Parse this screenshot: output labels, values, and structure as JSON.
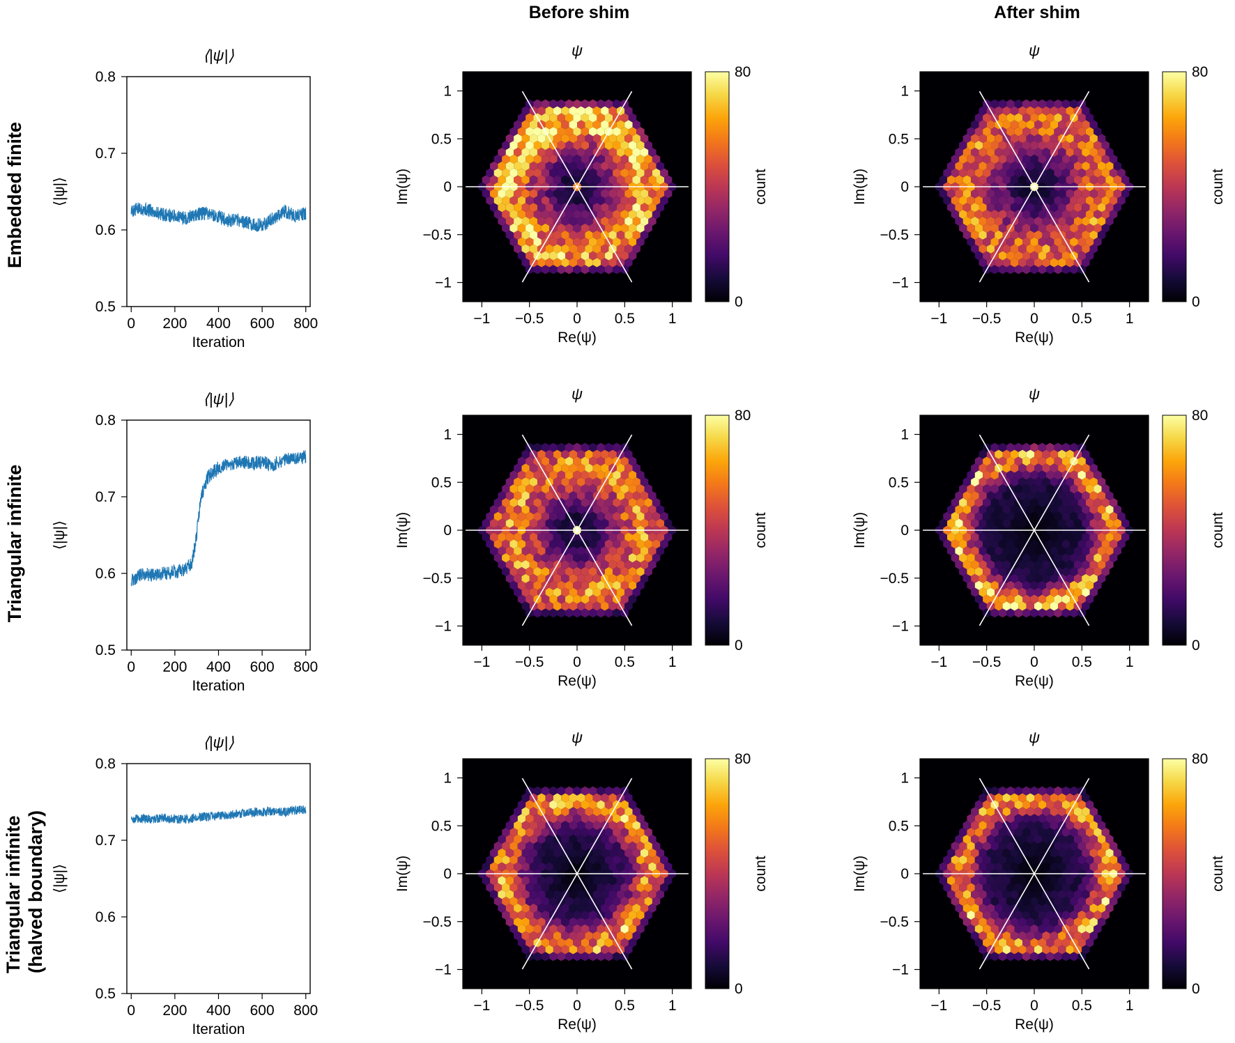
{
  "column_headers": [
    "Before shim",
    "After shim"
  ],
  "row_labels": [
    {
      "lines": [
        "Embedded finite"
      ]
    },
    {
      "lines": [
        "Triangular infinite"
      ]
    },
    {
      "lines": [
        "Triangular infinite",
        "(halved boundary)"
      ]
    }
  ],
  "chart_data": [
    {
      "id": "ts-embedded-finite",
      "type": "line",
      "title": "⟨|ψ|⟩",
      "xlabel": "Iteration",
      "ylabel": "⟨|ψ|⟩",
      "xlim": [
        -20,
        820
      ],
      "ylim": [
        0.5,
        0.8
      ],
      "xticks": [
        0,
        200,
        400,
        600,
        800
      ],
      "xticklabels": [
        "0",
        "200",
        "400",
        "600",
        "800"
      ],
      "yticks": [
        0.5,
        0.6,
        0.7,
        0.8
      ],
      "yticklabels": [
        "0.5",
        "0.6",
        "0.7",
        "0.8"
      ],
      "series": [
        {
          "name": "⟨|ψ|⟩",
          "color": "#1f77b4",
          "x": [
            0,
            50,
            100,
            150,
            200,
            250,
            300,
            350,
            400,
            450,
            500,
            550,
            600,
            650,
            700,
            750,
            800
          ],
          "y": [
            0.625,
            0.628,
            0.624,
            0.62,
            0.618,
            0.615,
            0.62,
            0.622,
            0.617,
            0.612,
            0.612,
            0.608,
            0.605,
            0.615,
            0.625,
            0.618,
            0.622
          ],
          "noise": 0.009
        }
      ]
    },
    {
      "id": "hex-embedded-finite-before",
      "type": "heatmap",
      "title": "ψ",
      "xlabel": "Re(ψ)",
      "ylabel": "Im(ψ)",
      "xlim": [
        -1.2,
        1.2
      ],
      "ylim": [
        -1.2,
        1.2
      ],
      "xticks": [
        -1,
        -0.5,
        0,
        0.5,
        1
      ],
      "xticklabels": [
        "−1",
        "−0.5",
        "0",
        "0.5",
        "1"
      ],
      "yticks": [
        -1,
        -0.5,
        0,
        0.5,
        1
      ],
      "yticklabels": [
        "−1",
        "−0.5",
        "0",
        "0.5",
        "1"
      ],
      "colorbar": {
        "label": "count",
        "min": 0,
        "max": 80,
        "ticklabels": [
          "0",
          "80"
        ],
        "colormap": "inferno"
      },
      "guide_lines_deg": [
        0,
        60,
        120
      ],
      "density": {
        "ring_radius": 0.72,
        "ring_width": 0.28,
        "ring_peak": 42,
        "inner_level": 22,
        "center_peak": 70,
        "top_boost": 14,
        "edge_radius": 0.98,
        "seed": 11
      }
    },
    {
      "id": "hex-embedded-finite-after",
      "type": "heatmap",
      "title": "ψ",
      "xlabel": "Re(ψ)",
      "ylabel": "Im(ψ)",
      "xlim": [
        -1.2,
        1.2
      ],
      "ylim": [
        -1.2,
        1.2
      ],
      "xticks": [
        -1,
        -0.5,
        0,
        0.5,
        1
      ],
      "xticklabels": [
        "−1",
        "−0.5",
        "0",
        "0.5",
        "1"
      ],
      "yticks": [
        -1,
        -0.5,
        0,
        0.5,
        1
      ],
      "yticklabels": [
        "−1",
        "−0.5",
        "0",
        "0.5",
        "1"
      ],
      "colorbar": {
        "label": "count",
        "min": 0,
        "max": 80,
        "ticklabels": [
          "0",
          "80"
        ],
        "colormap": "inferno"
      },
      "guide_lines_deg": [
        0,
        60,
        120
      ],
      "density": {
        "ring_radius": 0.72,
        "ring_width": 0.3,
        "ring_peak": 36,
        "inner_level": 18,
        "center_peak": 65,
        "top_boost": 0,
        "edge_radius": 0.98,
        "seed": 23
      }
    },
    {
      "id": "ts-triangular-infinite",
      "type": "line",
      "title": "⟨|ψ|⟩",
      "xlabel": "Iteration",
      "ylabel": "⟨|ψ|⟩",
      "xlim": [
        -20,
        820
      ],
      "ylim": [
        0.5,
        0.8
      ],
      "xticks": [
        0,
        200,
        400,
        600,
        800
      ],
      "xticklabels": [
        "0",
        "200",
        "400",
        "600",
        "800"
      ],
      "yticks": [
        0.5,
        0.6,
        0.7,
        0.8
      ],
      "yticklabels": [
        "0.5",
        "0.6",
        "0.7",
        "0.8"
      ],
      "series": [
        {
          "name": "⟨|ψ|⟩",
          "color": "#1f77b4",
          "x": [
            0,
            50,
            100,
            150,
            200,
            250,
            280,
            300,
            320,
            350,
            400,
            450,
            500,
            550,
            600,
            650,
            700,
            750,
            800
          ],
          "y": [
            0.59,
            0.6,
            0.598,
            0.6,
            0.602,
            0.605,
            0.615,
            0.65,
            0.7,
            0.725,
            0.738,
            0.742,
            0.745,
            0.744,
            0.745,
            0.742,
            0.748,
            0.75,
            0.752
          ],
          "noise": 0.009
        }
      ]
    },
    {
      "id": "hex-triangular-infinite-before",
      "type": "heatmap",
      "title": "ψ",
      "xlabel": "Re(ψ)",
      "ylabel": "Im(ψ)",
      "xlim": [
        -1.2,
        1.2
      ],
      "ylim": [
        -1.2,
        1.2
      ],
      "xticks": [
        -1,
        -0.5,
        0,
        0.5,
        1
      ],
      "xticklabels": [
        "−1",
        "−0.5",
        "0",
        "0.5",
        "1"
      ],
      "yticks": [
        -1,
        -0.5,
        0,
        0.5,
        1
      ],
      "yticklabels": [
        "−1",
        "−0.5",
        "0",
        "0.5",
        "1"
      ],
      "colorbar": {
        "label": "count",
        "min": 0,
        "max": 80,
        "ticklabels": [
          "0",
          "80"
        ],
        "colormap": "inferno"
      },
      "guide_lines_deg": [
        0,
        60,
        120
      ],
      "density": {
        "ring_radius": 0.68,
        "ring_width": 0.3,
        "ring_peak": 40,
        "inner_level": 16,
        "center_peak": 72,
        "top_boost": 0,
        "edge_radius": 0.98,
        "seed": 37
      }
    },
    {
      "id": "hex-triangular-infinite-after",
      "type": "heatmap",
      "title": "ψ",
      "xlabel": "Re(ψ)",
      "ylabel": "Im(ψ)",
      "xlim": [
        -1.2,
        1.2
      ],
      "ylim": [
        -1.2,
        1.2
      ],
      "xticks": [
        -1,
        -0.5,
        0,
        0.5,
        1
      ],
      "xticklabels": [
        "−1",
        "−0.5",
        "0",
        "0.5",
        "1"
      ],
      "yticks": [
        -1,
        -0.5,
        0,
        0.5,
        1
      ],
      "yticklabels": [
        "−1",
        "−0.5",
        "0",
        "0.5",
        "1"
      ],
      "colorbar": {
        "label": "count",
        "min": 0,
        "max": 80,
        "ticklabels": [
          "0",
          "80"
        ],
        "colormap": "inferno"
      },
      "guide_lines_deg": [
        0,
        60,
        120
      ],
      "density": {
        "ring_radius": 0.8,
        "ring_width": 0.17,
        "ring_peak": 56,
        "inner_level": 8,
        "center_peak": 0,
        "top_boost": 0,
        "edge_radius": 0.98,
        "seed": 41
      }
    },
    {
      "id": "ts-triangular-infinite-halved",
      "type": "line",
      "title": "⟨|ψ|⟩",
      "xlabel": "Iteration",
      "ylabel": "⟨|ψ|⟩",
      "xlim": [
        -20,
        820
      ],
      "ylim": [
        0.5,
        0.8
      ],
      "xticks": [
        0,
        200,
        400,
        600,
        800
      ],
      "xticklabels": [
        "0",
        "200",
        "400",
        "600",
        "800"
      ],
      "yticks": [
        0.5,
        0.6,
        0.7,
        0.8
      ],
      "yticklabels": [
        "0.5",
        "0.6",
        "0.7",
        "0.8"
      ],
      "series": [
        {
          "name": "⟨|ψ|⟩",
          "color": "#1f77b4",
          "x": [
            0,
            50,
            100,
            150,
            200,
            250,
            300,
            350,
            400,
            450,
            500,
            550,
            600,
            650,
            700,
            750,
            800
          ],
          "y": [
            0.728,
            0.728,
            0.728,
            0.729,
            0.728,
            0.727,
            0.73,
            0.731,
            0.732,
            0.733,
            0.735,
            0.736,
            0.737,
            0.738,
            0.737,
            0.739,
            0.74
          ],
          "noise": 0.006
        }
      ]
    },
    {
      "id": "hex-triangular-infinite-halved-before",
      "type": "heatmap",
      "title": "ψ",
      "xlabel": "Re(ψ)",
      "ylabel": "Im(ψ)",
      "xlim": [
        -1.2,
        1.2
      ],
      "ylim": [
        -1.2,
        1.2
      ],
      "xticks": [
        -1,
        -0.5,
        0,
        0.5,
        1
      ],
      "xticklabels": [
        "−1",
        "−0.5",
        "0",
        "0.5",
        "1"
      ],
      "yticks": [
        -1,
        -0.5,
        0,
        0.5,
        1
      ],
      "yticklabels": [
        "−1",
        "−0.5",
        "0",
        "0.5",
        "1"
      ],
      "colorbar": {
        "label": "count",
        "min": 0,
        "max": 80,
        "ticklabels": [
          "0",
          "80"
        ],
        "colormap": "inferno"
      },
      "guide_lines_deg": [
        0,
        60,
        120
      ],
      "density": {
        "ring_radius": 0.78,
        "ring_width": 0.2,
        "ring_peak": 50,
        "inner_level": 10,
        "center_peak": 0,
        "top_boost": 0,
        "edge_radius": 0.98,
        "seed": 53
      }
    },
    {
      "id": "hex-triangular-infinite-halved-after",
      "type": "heatmap",
      "title": "ψ",
      "xlabel": "Re(ψ)",
      "ylabel": "Im(ψ)",
      "xlim": [
        -1.2,
        1.2
      ],
      "ylim": [
        -1.2,
        1.2
      ],
      "xticks": [
        -1,
        -0.5,
        0,
        0.5,
        1
      ],
      "xticklabels": [
        "−1",
        "−0.5",
        "0",
        "0.5",
        "1"
      ],
      "yticks": [
        -1,
        -0.5,
        0,
        0.5,
        1
      ],
      "yticklabels": [
        "−1",
        "−0.5",
        "0",
        "0.5",
        "1"
      ],
      "colorbar": {
        "label": "count",
        "min": 0,
        "max": 80,
        "ticklabels": [
          "0",
          "80"
        ],
        "colormap": "inferno"
      },
      "guide_lines_deg": [
        0,
        60,
        120
      ],
      "density": {
        "ring_radius": 0.8,
        "ring_width": 0.18,
        "ring_peak": 52,
        "inner_level": 9,
        "center_peak": 0,
        "top_boost": 0,
        "edge_radius": 0.98,
        "seed": 67
      }
    }
  ]
}
